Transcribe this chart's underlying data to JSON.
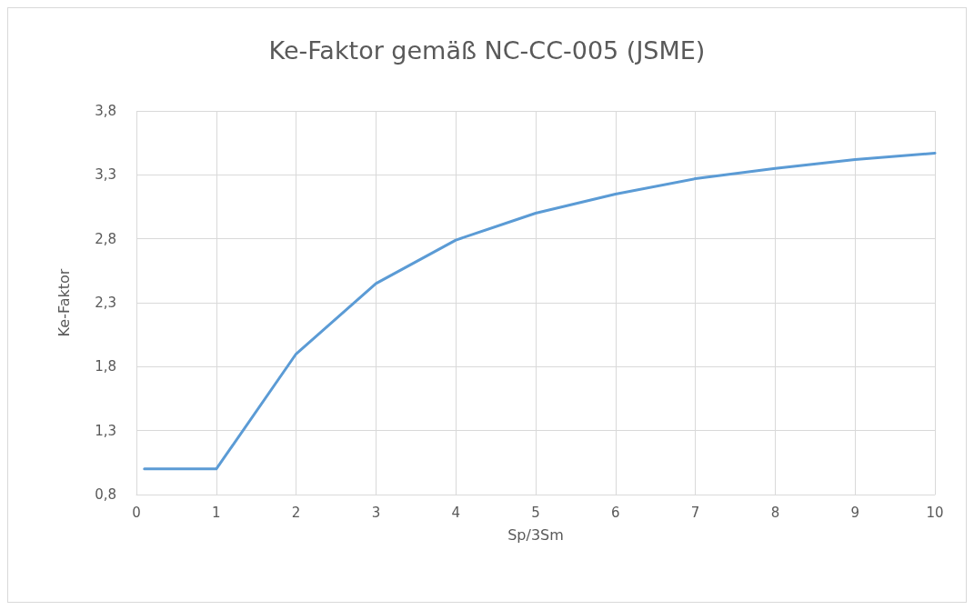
{
  "chart_data": {
    "type": "line",
    "title": "Ke-Faktor gemäß NC-CC-005 (JSME)",
    "xlabel": "Sp/3Sm",
    "ylabel": "Ke-Faktor",
    "x": [
      0.1,
      1,
      2,
      3,
      4,
      5,
      6,
      7,
      8,
      9,
      10
    ],
    "series": [
      {
        "color": "#5b9bd5",
        "values": [
          1.0,
          1.0,
          1.9,
          2.45,
          2.79,
          3.0,
          3.15,
          3.27,
          3.35,
          3.42,
          3.47
        ]
      }
    ],
    "xlim": [
      0,
      10
    ],
    "xticks": [
      0,
      1,
      2,
      3,
      4,
      5,
      6,
      7,
      8,
      9,
      10
    ],
    "ylim": [
      0.8,
      3.8
    ],
    "yticks": [
      {
        "value": 0.8,
        "label": "0,8"
      },
      {
        "value": 1.3,
        "label": "1,3"
      },
      {
        "value": 1.8,
        "label": "1,8"
      },
      {
        "value": 2.3,
        "label": "2,3"
      },
      {
        "value": 2.8,
        "label": "2,8"
      },
      {
        "value": 3.3,
        "label": "3,3"
      },
      {
        "value": 3.8,
        "label": "3,8"
      }
    ],
    "grid": true,
    "marker": "none",
    "line_style": "solid"
  }
}
